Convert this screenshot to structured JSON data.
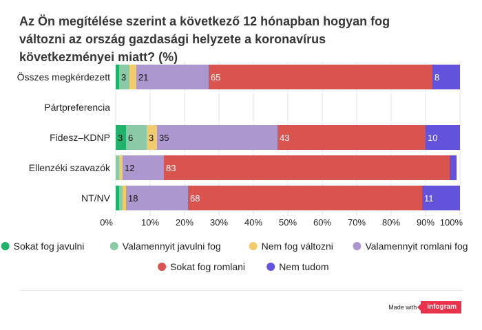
{
  "chart_data": {
    "type": "bar",
    "orientation": "horizontal",
    "stacked": true,
    "title": "Az Ön megítélése szerint a következő 12 hónapban hogyan fog változni az ország gazdasági helyzete a koronavírus következményei miatt? (%)",
    "categories": [
      "Összes megkérdezett",
      "Pártpreferencia",
      "Fidesz–KDNP",
      "Ellenzéki szavazók",
      "NT/NV"
    ],
    "xlim": [
      0,
      100
    ],
    "x_ticks": [
      "0%",
      "10%",
      "20%",
      "30%",
      "40%",
      "50%",
      "60%",
      "70%",
      "80%",
      "90%",
      "100%"
    ],
    "series": [
      {
        "name": "Sokat fog javulni",
        "color": "#20b26b",
        "values": [
          1,
          null,
          3,
          0,
          1
        ],
        "labels": [
          "",
          "",
          "3",
          "",
          ""
        ]
      },
      {
        "name": "Valamennyit javulni fog",
        "color": "#8ccaa7",
        "values": [
          3,
          null,
          6,
          1,
          1
        ],
        "labels": [
          "3",
          "",
          "6",
          "",
          ""
        ]
      },
      {
        "name": "Nem fog változni",
        "color": "#f2cb6c",
        "values": [
          2,
          null,
          3,
          1,
          1
        ],
        "labels": [
          "",
          "",
          "3",
          "",
          ""
        ]
      },
      {
        "name": "Valamennyit romlani fog",
        "color": "#ac98cf",
        "values": [
          21,
          null,
          35,
          12,
          18
        ],
        "labels": [
          "21",
          "",
          "35",
          "12",
          "18"
        ]
      },
      {
        "name": "Sokat fog romlani",
        "color": "#d9534f",
        "values": [
          65,
          null,
          43,
          83,
          68
        ],
        "labels": [
          "65",
          "",
          "43",
          "83",
          "68"
        ]
      },
      {
        "name": "Nem tudom",
        "color": "#6352db",
        "values": [
          8,
          null,
          10,
          2,
          11
        ],
        "labels": [
          "8",
          "",
          "10",
          "",
          "11"
        ]
      }
    ],
    "legend_position": "bottom",
    "grid": true
  },
  "footer": {
    "made_with": "Made with",
    "brand": "infogram"
  }
}
